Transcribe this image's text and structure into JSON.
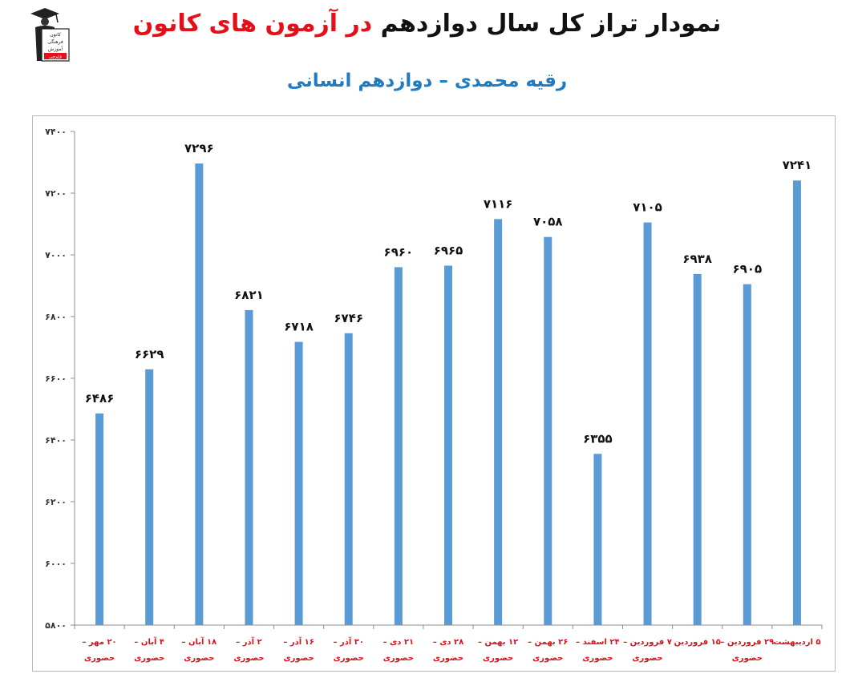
{
  "title": {
    "part1": "نمودار تراز کل سال دوازدهم ",
    "part2": "در آزمون های کانون"
  },
  "subtitle": "رقیه محمدی – دوازدهم انسانی",
  "logo": {
    "line1": "کانون",
    "line2": "فرهنگی",
    "line3": "آموزش",
    "line4": "قلم‌چی",
    "icon": "graduate-logo-icon"
  },
  "colors": {
    "bar": "#5b9bd5",
    "title_red": "#e3101a",
    "subtitle_blue": "#1f7bc4",
    "label_red": "#e3101a"
  },
  "chart_data": {
    "type": "bar",
    "ylim": [
      5800,
      7400
    ],
    "yticks": [
      "۵۸۰۰",
      "۶۰۰۰",
      "۶۲۰۰",
      "۶۴۰۰",
      "۶۶۰۰",
      "۶۸۰۰",
      "۷۰۰۰",
      "۷۲۰۰",
      "۷۴۰۰"
    ],
    "ytick_values": [
      5800,
      6000,
      6200,
      6400,
      6600,
      6800,
      7000,
      7200,
      7400
    ],
    "categories": [
      [
        "۲۰ مهر –",
        "حضوری"
      ],
      [
        "۴ آبان –",
        "حضوری"
      ],
      [
        "۱۸ آبان –",
        "حضوری"
      ],
      [
        "۲ آذر –",
        "حضوری"
      ],
      [
        "۱۶ آذر –",
        "حضوری"
      ],
      [
        "۳۰ آذر –",
        "حضوری"
      ],
      [
        "۲۱ دی –",
        "حضوری"
      ],
      [
        "۲۸ دی –",
        "حضوری"
      ],
      [
        "۱۲ بهمن –",
        "حضوری"
      ],
      [
        "۲۶ بهمن –",
        "حضوری"
      ],
      [
        "۲۴ اسفند –",
        "حضوری"
      ],
      [
        "۷ فروردین –",
        "حضوری"
      ],
      [
        "۱۵ فروردین",
        ""
      ],
      [
        "۲۹ فروردین –",
        "حضوری"
      ],
      [
        "۵ اردیبهشت",
        ""
      ]
    ],
    "values": [
      6486,
      6629,
      7296,
      6821,
      6718,
      6746,
      6960,
      6965,
      7116,
      7058,
      6355,
      7105,
      6938,
      6905,
      7241
    ],
    "value_labels": [
      "۶۴۸۶",
      "۶۶۲۹",
      "۷۲۹۶",
      "۶۸۲۱",
      "۶۷۱۸",
      "۶۷۴۶",
      "۶۹۶۰",
      "۶۹۶۵",
      "۷۱۱۶",
      "۷۰۵۸",
      "۶۳۵۵",
      "۷۱۰۵",
      "۶۹۳۸",
      "۶۹۰۵",
      "۷۲۴۱"
    ],
    "grid": false,
    "legend": "none"
  }
}
